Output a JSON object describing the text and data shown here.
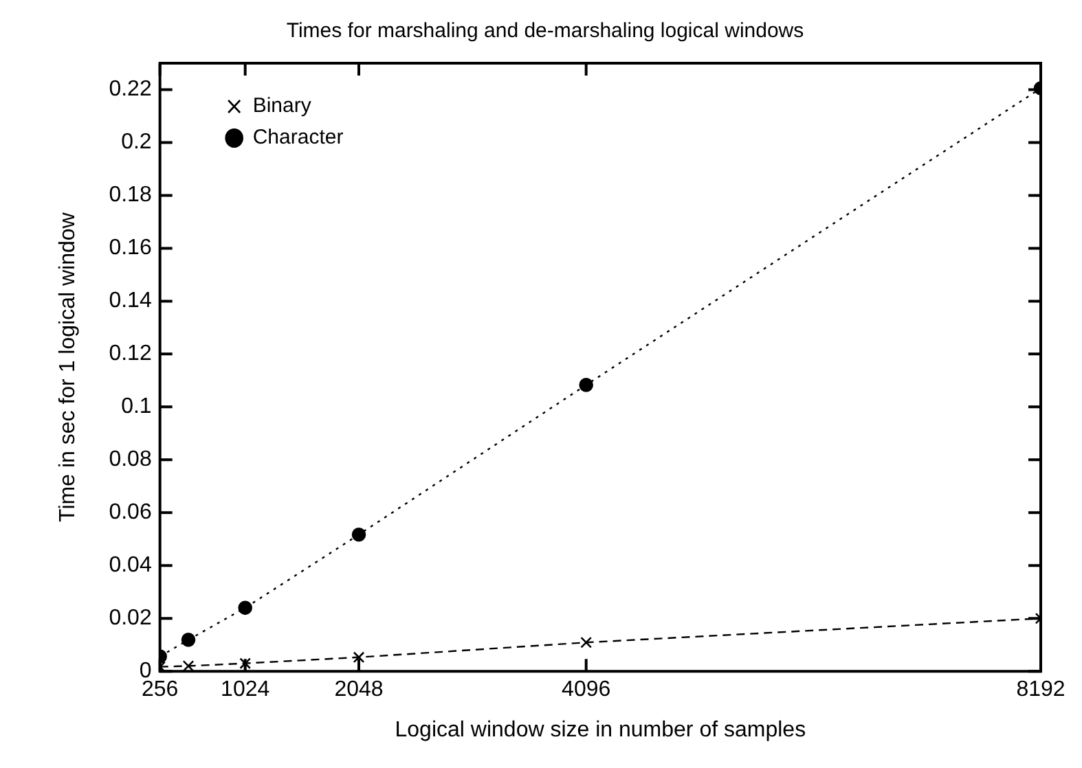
{
  "chart_data": {
    "type": "line",
    "title": "Times for marshaling and de-marshaling logical windows",
    "xlabel": "Logical window size in number of samples",
    "ylabel": "Time in sec for 1 logical window",
    "x": [
      256,
      512,
      1024,
      2048,
      4096,
      8192
    ],
    "series": [
      {
        "name": "Binary",
        "color": "#000000",
        "marker": "cross",
        "line_style": "dashed",
        "values": [
          0.0017,
          0.002,
          0.003,
          0.0053,
          0.0109,
          0.02
        ]
      },
      {
        "name": "Character",
        "color": "#000000",
        "marker": "circle",
        "line_style": "dotted",
        "values": [
          0.0056,
          0.0119,
          0.024,
          0.0517,
          0.1083,
          0.2205
        ]
      }
    ],
    "xlim": [
      256,
      8192
    ],
    "xticks": [
      256,
      1024,
      2048,
      4096,
      8192
    ],
    "ylim": [
      0,
      0.23
    ],
    "yticks": [
      0,
      0.02,
      0.04,
      0.06,
      0.08,
      0.1,
      0.12,
      0.14,
      0.16,
      0.18,
      0.2,
      0.22
    ],
    "grid": false,
    "legend": "top left"
  }
}
